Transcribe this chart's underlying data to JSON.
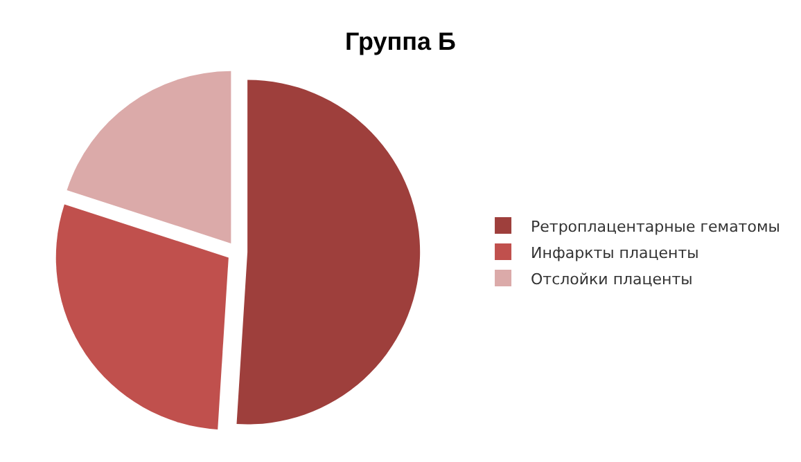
{
  "chart_data": {
    "type": "pie",
    "title": "Группа Б",
    "categories": [
      "Ретроплацентарные гематомы",
      "Инфаркты плаценты",
      "Отслойки плаценты"
    ],
    "values": [
      51,
      29,
      20
    ],
    "colors": [
      "#9e3f3c",
      "#c0504d",
      "#dbaaa9"
    ],
    "legend": "right"
  }
}
